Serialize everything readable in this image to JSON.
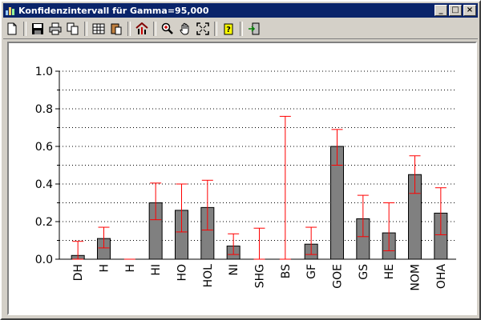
{
  "window": {
    "title": "Konfidenzintervall für Gamma=95,000",
    "minimize_label": "_",
    "maximize_label": "□",
    "close_label": "×"
  },
  "toolbar": {
    "buttons": [
      {
        "name": "new-document-icon"
      },
      {
        "name": "save-icon"
      },
      {
        "name": "print-icon"
      },
      {
        "name": "copy-icon"
      },
      {
        "name": "table-icon"
      },
      {
        "name": "paste-icon"
      },
      {
        "name": "chart-properties-icon"
      },
      {
        "name": "zoom-icon"
      },
      {
        "name": "hand-pan-icon"
      },
      {
        "name": "fit-view-icon"
      },
      {
        "name": "help-icon"
      },
      {
        "name": "exit-icon"
      }
    ]
  },
  "chart_data": {
    "type": "bar",
    "title": "",
    "xlabel": "",
    "ylabel": "",
    "ylim": [
      0,
      1.0
    ],
    "yticks": [
      "0.0",
      "0.2",
      "0.4",
      "0.6",
      "0.8",
      "1.0"
    ],
    "grid": true,
    "categories": [
      "DH",
      "H",
      "H",
      "HI",
      "HO",
      "HOL",
      "NI",
      "SHG",
      "BS",
      "GF",
      "GOE",
      "GS",
      "HE",
      "NOM",
      "OHA"
    ],
    "values": [
      0.02,
      0.11,
      0.0,
      0.3,
      0.26,
      0.275,
      0.07,
      0.0,
      0.0,
      0.08,
      0.6,
      0.215,
      0.14,
      0.45,
      0.245
    ],
    "error_low": [
      0.0,
      0.06,
      0.0,
      0.21,
      0.145,
      0.155,
      0.025,
      0.0,
      0.0,
      0.025,
      0.5,
      0.12,
      0.045,
      0.35,
      0.13
    ],
    "error_high": [
      0.095,
      0.17,
      0.0,
      0.405,
      0.4,
      0.42,
      0.135,
      0.165,
      0.76,
      0.17,
      0.69,
      0.34,
      0.3,
      0.55,
      0.38
    ],
    "colors": {
      "bar": "#808080",
      "error": "#ff0000",
      "grid": "#000000"
    }
  }
}
